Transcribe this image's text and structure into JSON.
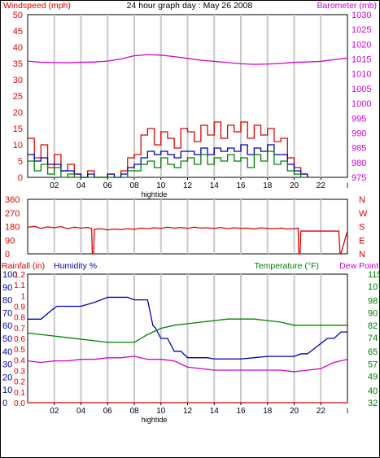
{
  "title": "24 hour graph day : May 26 2008",
  "colors": {
    "red": "#e00000",
    "blue": "#0000b0",
    "green": "#008000",
    "magenta": "#d000d0",
    "grid": "#c8c8c8"
  },
  "x_ticks": [
    "02",
    "04",
    "06",
    "08",
    "10",
    "12",
    "14",
    "16",
    "18",
    "20",
    "22"
  ],
  "x_end_tick": "I",
  "hightide_label": "hightide",
  "chart_data": [
    {
      "type": "line",
      "name": "wind-barometer",
      "left_label": "Windspeed (mph)",
      "right_label": "Barometer (mb)",
      "xlim": [
        0,
        24
      ],
      "ylim_left": [
        0,
        50
      ],
      "ylim_right": [
        975,
        1030
      ],
      "yticks_left": [
        0,
        5,
        10,
        15,
        20,
        25,
        30,
        35,
        40,
        45,
        50
      ],
      "yticks_right": [
        975,
        980,
        985,
        990,
        995,
        1000,
        1005,
        1010,
        1015,
        1020,
        1025,
        1030
      ],
      "series": [
        {
          "axis": "right",
          "color": "magenta",
          "x": [
            0,
            1,
            2,
            3,
            4,
            5,
            6,
            7,
            8,
            9,
            10,
            11,
            12,
            13,
            14,
            15,
            16,
            17,
            18,
            19,
            20,
            21,
            22,
            23,
            24
          ],
          "values": [
            1014.3,
            1013.9,
            1013.8,
            1013.7,
            1013.9,
            1014.0,
            1014.3,
            1015.0,
            1016.1,
            1016.5,
            1016.3,
            1015.8,
            1015.2,
            1014.6,
            1014.2,
            1013.8,
            1013.4,
            1013.2,
            1013.3,
            1013.5,
            1013.9,
            1014.0,
            1014.2,
            1014.8,
            1015.3
          ]
        },
        {
          "axis": "left",
          "color": "red",
          "x": [
            0,
            0.5,
            1,
            1.5,
            2,
            2.5,
            3,
            3.5,
            4,
            4.5,
            5,
            5.5,
            6,
            6.5,
            7,
            7.5,
            8,
            8.5,
            9,
            9.5,
            10,
            10.5,
            11,
            11.5,
            12,
            12.5,
            13,
            13.5,
            14,
            14.5,
            15,
            15.5,
            16,
            16.5,
            17,
            17.5,
            18,
            18.5,
            19,
            19.5,
            20,
            20.5,
            21
          ],
          "values": [
            12,
            6,
            10,
            3,
            7,
            2,
            4,
            1,
            0,
            2,
            0,
            0,
            1,
            0,
            2,
            6,
            7,
            13,
            15,
            10,
            14,
            12,
            9,
            15,
            14,
            11,
            16,
            13,
            17,
            12,
            16,
            14,
            17,
            12,
            16,
            13,
            15,
            11,
            12,
            6,
            3,
            1,
            0
          ]
        },
        {
          "axis": "left",
          "color": "blue",
          "x": [
            0,
            0.5,
            1,
            1.5,
            2,
            2.5,
            3,
            3.5,
            4,
            4.5,
            5,
            5.5,
            6,
            6.5,
            7,
            7.5,
            8,
            8.5,
            9,
            9.5,
            10,
            10.5,
            11,
            11.5,
            12,
            12.5,
            13,
            13.5,
            14,
            14.5,
            15,
            15.5,
            16,
            16.5,
            17,
            17.5,
            18,
            18.5,
            19,
            19.5,
            20,
            20.5,
            21
          ],
          "values": [
            7,
            5,
            6,
            4,
            4,
            2,
            2,
            1,
            0,
            1,
            0,
            0,
            1,
            0,
            1,
            3,
            4,
            6,
            8,
            7,
            8,
            7,
            6,
            8,
            8,
            7,
            9,
            7,
            9,
            8,
            9,
            8,
            10,
            7,
            9,
            8,
            10,
            7,
            7,
            4,
            2,
            1,
            0
          ]
        },
        {
          "axis": "left",
          "color": "green",
          "x": [
            0,
            0.5,
            1,
            1.5,
            2,
            2.5,
            3,
            3.5,
            4,
            4.5,
            5,
            5.5,
            6,
            6.5,
            7,
            7.5,
            8,
            8.5,
            9,
            9.5,
            10,
            10.5,
            11,
            11.5,
            12,
            12.5,
            13,
            13.5,
            14,
            14.5,
            15,
            15.5,
            16,
            16.5,
            17,
            17.5,
            18,
            18.5,
            19,
            19.5,
            20,
            20.5,
            21
          ],
          "values": [
            5,
            2,
            4,
            1,
            3,
            0,
            1,
            0,
            0,
            0,
            0,
            0,
            0,
            0,
            0,
            2,
            2,
            4,
            5,
            3,
            6,
            4,
            3,
            5,
            6,
            4,
            7,
            4,
            6,
            5,
            7,
            5,
            6,
            3,
            7,
            5,
            8,
            4,
            5,
            2,
            1,
            0,
            0
          ]
        }
      ]
    },
    {
      "type": "line",
      "name": "wind-direction",
      "left_ticks": [
        "360",
        "270",
        "180",
        "90",
        "0"
      ],
      "ylim_left": [
        0,
        360
      ],
      "right_ticks": [
        "N",
        "W",
        "S",
        "E",
        "N"
      ],
      "series": [
        {
          "color": "red",
          "x": [
            0,
            0.5,
            1,
            1.5,
            2,
            2.5,
            3,
            3.5,
            4,
            4.5,
            4.8,
            4.85,
            4.95,
            5,
            5.5,
            6,
            6.5,
            7,
            7.5,
            8,
            8.5,
            9,
            9.5,
            10,
            10.5,
            11,
            11.5,
            12,
            12.5,
            13,
            13.5,
            14,
            14.5,
            15,
            15.5,
            16,
            16.5,
            17,
            17.5,
            18,
            18.5,
            19,
            19.5,
            20,
            20.3,
            20.35,
            20.45,
            20.5,
            21,
            21.5,
            22,
            22.5,
            23,
            23.3,
            23.35,
            23.45,
            23.5,
            24
          ],
          "values": [
            175,
            182,
            168,
            178,
            172,
            180,
            166,
            176,
            170,
            174,
            168,
            0,
            0,
            162,
            166,
            158,
            164,
            160,
            166,
            162,
            170,
            166,
            172,
            168,
            176,
            170,
            174,
            168,
            176,
            170,
            172,
            168,
            174,
            166,
            172,
            168,
            170,
            164,
            172,
            168,
            166,
            170,
            164,
            166,
            170,
            0,
            0,
            150,
            150,
            150,
            150,
            150,
            150,
            150,
            150,
            0,
            0,
            150
          ]
        }
      ]
    },
    {
      "type": "line",
      "name": "rain-humidity-temperature",
      "left_label_rain": "Rainfall (in)",
      "left_label_humidity": "Humidity %",
      "right_label_temperature": "Temperature (°F)",
      "right_label_dewpoint": "Dew Point",
      "ylim_humidity": [
        0,
        100
      ],
      "yticks_humidity": [
        0,
        10,
        20,
        30,
        40,
        50,
        60,
        70,
        80,
        90,
        100
      ],
      "ylim_rain": [
        0,
        1.2
      ],
      "yticks_rain": [
        "0.0",
        "0.1",
        "0.2",
        "0.3",
        "0.4",
        "0.5",
        "0.6",
        "0.7",
        "0.8",
        "0.9",
        "1",
        "1.1",
        "1.2"
      ],
      "ylim_temperature": [
        32,
        115
      ],
      "yticks_temperature": [
        32,
        40,
        49,
        57,
        65,
        74,
        82,
        90,
        98,
        107,
        115
      ],
      "series": [
        {
          "name": "Humidity %",
          "color": "blue",
          "x": [
            0,
            1,
            1.8,
            2.2,
            4,
            5,
            6,
            7,
            7.5,
            8,
            8.5,
            9,
            9.4,
            9.6,
            10,
            10.5,
            11,
            11.5,
            12,
            12.5,
            13,
            13.5,
            14,
            15,
            16,
            17,
            18,
            19,
            20,
            20.5,
            21,
            21.5,
            22,
            22.5,
            23,
            23.5,
            24
          ],
          "values": [
            65,
            65,
            72,
            75,
            75,
            78,
            82,
            82,
            82,
            80,
            80,
            80,
            60,
            58,
            50,
            50,
            40,
            40,
            35,
            35,
            35,
            35,
            34,
            34,
            34,
            35,
            36,
            36,
            36,
            38,
            38,
            42,
            46,
            50,
            50,
            55,
            55
          ]
        },
        {
          "name": "Temperature (°F)",
          "color": "green",
          "x": [
            0,
            1,
            2,
            3,
            4,
            5,
            6,
            7,
            8,
            9,
            10,
            11,
            12,
            13,
            14,
            15,
            16,
            17,
            18,
            19,
            20,
            21,
            22,
            23,
            24
          ],
          "values": [
            77,
            76,
            75,
            74,
            73,
            72,
            71,
            71,
            71,
            76,
            80,
            82,
            83,
            84,
            85,
            86,
            86,
            86,
            85,
            84,
            82,
            82,
            82,
            82,
            82
          ],
          "axis": "temperature"
        },
        {
          "name": "Dew Point",
          "color": "magenta",
          "x": [
            0,
            1,
            2,
            3,
            4,
            5,
            6,
            7,
            8,
            9,
            10,
            11,
            12,
            13,
            14,
            15,
            16,
            17,
            18,
            19,
            20,
            21,
            22,
            23,
            24
          ],
          "values": [
            59,
            58,
            59,
            59,
            60,
            60,
            61,
            61,
            62,
            60,
            60,
            59,
            55,
            54,
            53,
            53,
            53,
            53,
            53,
            53,
            52,
            53,
            54,
            58,
            60
          ],
          "axis": "temperature"
        },
        {
          "name": "Rainfall (in)",
          "color": "red",
          "x": [
            0,
            24
          ],
          "values": [
            0,
            0
          ],
          "axis": "rain"
        }
      ]
    }
  ]
}
